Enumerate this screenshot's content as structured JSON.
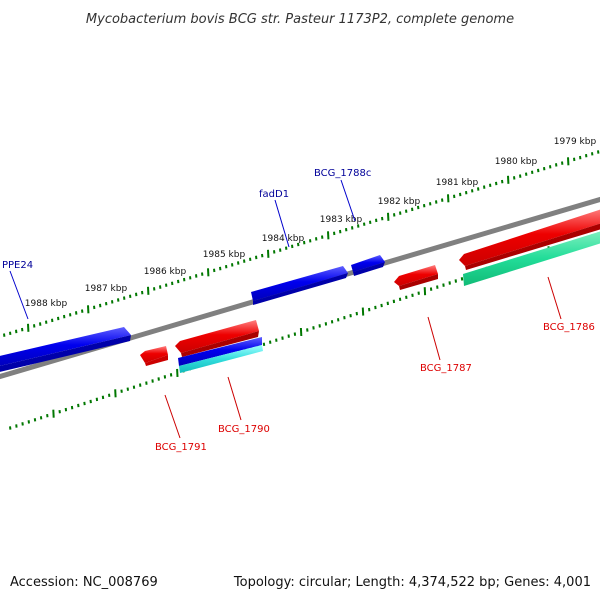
{
  "title": "Mycobacterium bovis BCG str. Pasteur 1173P2, complete genome",
  "footer": {
    "accession": "Accession: NC_008769",
    "topology": "Topology: circular; Length: 4,374,522 bp; Genes: 4,001"
  },
  "ticks_outer": [
    "1979 kbp",
    "1980 kbp",
    "1981 kbp",
    "1982 kbp",
    "1983 kbp",
    "1984 kbp",
    "1985 kbp",
    "1986 kbp",
    "1987 kbp",
    "1988 kbp"
  ],
  "genes": [
    {
      "name": "BCG_1786",
      "strand": "reverse",
      "color": "#dd0000"
    },
    {
      "name": "BCG_1787",
      "strand": "reverse",
      "color": "#dd0000"
    },
    {
      "name": "BCG_1788c",
      "strand": "forward",
      "color": "#000099"
    },
    {
      "name": "fadD1",
      "strand": "forward",
      "color": "#000099"
    },
    {
      "name": "BCG_1790",
      "strand": "reverse",
      "color": "#dd0000"
    },
    {
      "name": "BCG_1791",
      "strand": "reverse",
      "color": "#dd0000"
    },
    {
      "name": "PPE24",
      "strand": "forward",
      "color": "#000099"
    }
  ],
  "colors": {
    "backbone": "#808080",
    "forward_gene": "#0000ee",
    "reverse_gene": "#ee0000",
    "green_feature": "#22cc88",
    "cyan_feature": "#22cccc",
    "tick": "#007700"
  }
}
